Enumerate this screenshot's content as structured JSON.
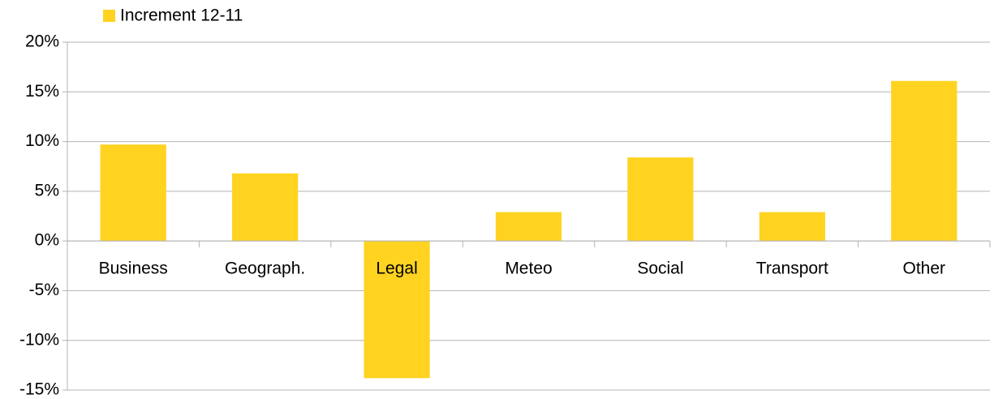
{
  "chart_data": {
    "type": "bar",
    "categories": [
      "Business",
      "Geograph.",
      "Legal",
      "Meteo",
      "Social",
      "Transport",
      "Other"
    ],
    "series": [
      {
        "name": "Increment 12-11",
        "color": "#ffd320",
        "values": [
          9.7,
          6.8,
          -13.8,
          2.9,
          8.4,
          2.9,
          16.1
        ]
      }
    ],
    "ylim": [
      -15,
      20
    ],
    "yticks": [
      {
        "value": -15,
        "label": "-15%"
      },
      {
        "value": -10,
        "label": "-10%"
      },
      {
        "value": -5,
        "label": "-5%"
      },
      {
        "value": 0,
        "label": "0%"
      },
      {
        "value": 5,
        "label": "5%"
      },
      {
        "value": 10,
        "label": "10%"
      },
      {
        "value": 15,
        "label": "15%"
      },
      {
        "value": 20,
        "label": "20%"
      }
    ],
    "grid": true,
    "legend": "top"
  }
}
